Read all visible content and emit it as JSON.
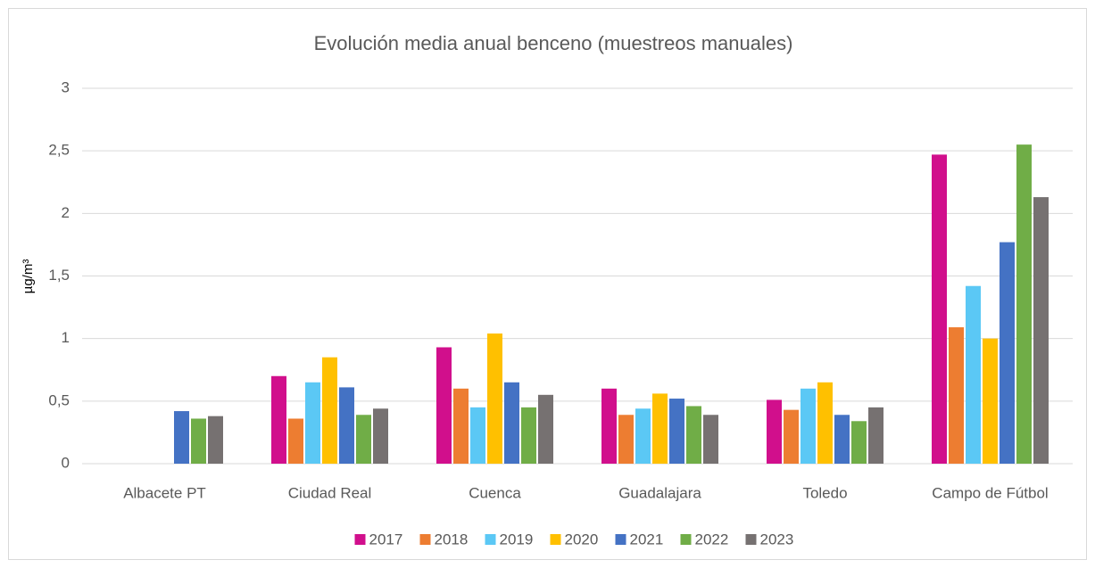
{
  "chart_data": {
    "type": "bar",
    "title": "Evolución media anual benceno (muestreos manuales)",
    "y_label": "µg/m³",
    "categories": [
      "Albacete PT",
      "Ciudad Real",
      "Cuenca",
      "Guadalajara",
      "Toledo",
      "Campo de Fútbol"
    ],
    "series": [
      {
        "name": "2017",
        "color": "#d10f8c",
        "values": [
          null,
          0.7,
          0.93,
          0.6,
          0.51,
          2.47
        ]
      },
      {
        "name": "2018",
        "color": "#ed7d31",
        "values": [
          null,
          0.36,
          0.6,
          0.39,
          0.43,
          1.09
        ]
      },
      {
        "name": "2019",
        "color": "#5bc8f5",
        "values": [
          null,
          0.65,
          0.45,
          0.44,
          0.6,
          1.42
        ]
      },
      {
        "name": "2020",
        "color": "#ffc000",
        "values": [
          null,
          0.85,
          1.04,
          0.56,
          0.65,
          1.0
        ]
      },
      {
        "name": "2021",
        "color": "#4472c4",
        "values": [
          0.42,
          0.61,
          0.65,
          0.52,
          0.39,
          1.77
        ]
      },
      {
        "name": "2022",
        "color": "#70ad47",
        "values": [
          0.36,
          0.39,
          0.45,
          0.46,
          0.34,
          2.55
        ]
      },
      {
        "name": "2023",
        "color": "#767171",
        "values": [
          0.38,
          0.44,
          0.55,
          0.39,
          0.45,
          2.13
        ]
      }
    ],
    "ylim": [
      0,
      3
    ],
    "yticks": [
      0,
      {
        "value": 0.5,
        "label": "0,5"
      },
      1,
      {
        "value": 1.5,
        "label": "1,5"
      },
      2,
      {
        "value": 2.5,
        "label": "2,5"
      },
      3
    ],
    "grid": true,
    "legend": "bottom"
  }
}
